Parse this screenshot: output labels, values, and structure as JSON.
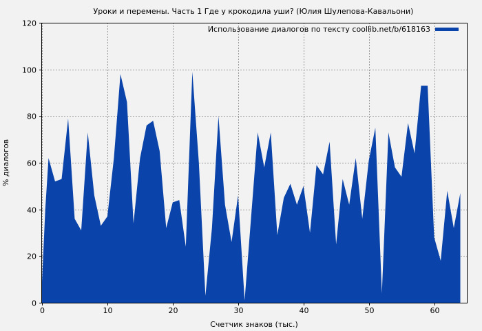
{
  "chart_data": {
    "type": "area",
    "title": "Уроки и перемены. Часть 1 Где у крокодила уши? (Юлия Шулепова-Кавальони)",
    "xlabel": "Счетчик знаков (тыс.)",
    "ylabel": "% диалогов",
    "xlim": [
      0,
      65
    ],
    "ylim": [
      0,
      120
    ],
    "xticks": [
      0,
      10,
      20,
      30,
      40,
      50,
      60
    ],
    "yticks": [
      0,
      20,
      40,
      60,
      80,
      100,
      120
    ],
    "grid": true,
    "legend_position": "top-right",
    "series": [
      {
        "name": "Использование диалогов по тексту coollib.net/b/618163",
        "color": "#0a44aa",
        "x": [
          0,
          0.5,
          1,
          2,
          3,
          4,
          5,
          6,
          7,
          8,
          9,
          10,
          11,
          12,
          13,
          14,
          15,
          16,
          17,
          18,
          19,
          20,
          21,
          22,
          23,
          24,
          25,
          26,
          27,
          28,
          29,
          30,
          31,
          32,
          33,
          34,
          35,
          36,
          37,
          38,
          39,
          40,
          41,
          42,
          43,
          44,
          45,
          46,
          47,
          48,
          49,
          50,
          51,
          52,
          53,
          54,
          55,
          56,
          57,
          58,
          59,
          60,
          61,
          62,
          63,
          64
        ],
        "y": [
          9,
          40,
          62,
          52,
          53,
          79,
          36,
          31,
          73,
          46,
          33,
          37,
          62,
          98,
          86,
          34,
          62,
          76,
          78,
          65,
          32,
          43,
          44,
          24,
          99,
          60,
          3,
          32,
          80,
          42,
          26,
          46,
          1,
          37,
          73,
          58,
          73,
          29,
          45,
          51,
          42,
          50,
          30,
          59,
          55,
          69,
          25,
          53,
          42,
          62,
          36,
          61,
          75,
          4,
          73,
          58,
          54,
          77,
          64,
          93,
          93,
          28,
          18,
          48,
          32,
          47
        ]
      }
    ]
  }
}
